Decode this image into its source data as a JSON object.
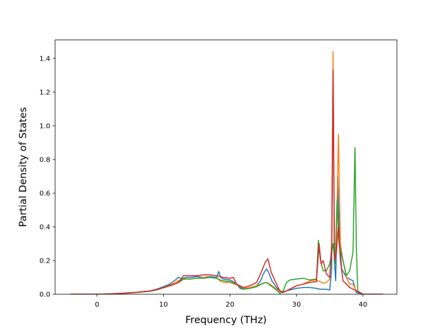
{
  "chart_data": {
    "type": "line",
    "title": "",
    "xlabel": "Frequency (THz)",
    "ylabel": "Partial Density of States",
    "xlim": [
      -6.3,
      45.1
    ],
    "ylim": [
      0,
      1.51
    ],
    "xticks": [
      0,
      10,
      20,
      30,
      40
    ],
    "yticks": [
      0.0,
      0.2,
      0.4,
      0.6,
      0.8,
      1.0,
      1.2,
      1.4
    ],
    "grid": false,
    "legend": "none",
    "series": [
      {
        "color": "#1f77b4",
        "points": [
          [
            -4,
            0
          ],
          [
            0,
            0
          ],
          [
            2,
            0.002
          ],
          [
            4,
            0.006
          ],
          [
            6,
            0.012
          ],
          [
            8,
            0.02
          ],
          [
            9,
            0.03
          ],
          [
            10,
            0.045
          ],
          [
            11,
            0.062
          ],
          [
            11.8,
            0.085
          ],
          [
            12.2,
            0.1
          ],
          [
            12.8,
            0.092
          ],
          [
            13.4,
            0.1
          ],
          [
            14,
            0.1
          ],
          [
            15,
            0.105
          ],
          [
            16,
            0.1
          ],
          [
            17,
            0.105
          ],
          [
            18,
            0.1
          ],
          [
            18.3,
            0.135
          ],
          [
            18.6,
            0.1
          ],
          [
            19,
            0.09
          ],
          [
            20,
            0.085
          ],
          [
            20.5,
            0.075
          ],
          [
            21,
            0.06
          ],
          [
            21.5,
            0.035
          ],
          [
            22,
            0.03
          ],
          [
            23,
            0.035
          ],
          [
            24,
            0.05
          ],
          [
            24.6,
            0.08
          ],
          [
            25,
            0.12
          ],
          [
            25.5,
            0.15
          ],
          [
            25.8,
            0.13
          ],
          [
            26.3,
            0.08
          ],
          [
            27,
            0.04
          ],
          [
            27.5,
            0.02
          ],
          [
            28,
            0.015
          ],
          [
            29,
            0.025
          ],
          [
            30,
            0.035
          ],
          [
            31,
            0.04
          ],
          [
            32,
            0.04
          ],
          [
            33,
            0.035
          ],
          [
            33.5,
            0.03
          ],
          [
            34,
            0.03
          ],
          [
            34.5,
            0.03
          ],
          [
            35,
            0.025
          ],
          [
            35.3,
            0.15
          ],
          [
            35.5,
            1.33
          ],
          [
            35.7,
            0.2
          ],
          [
            35.9,
            0.08
          ],
          [
            36.2,
            0.7
          ],
          [
            36.5,
            0.3
          ],
          [
            36.8,
            0.15
          ],
          [
            37.5,
            0.1
          ],
          [
            38.5,
            0.08
          ],
          [
            39,
            0.01
          ],
          [
            40,
            0
          ],
          [
            43,
            0
          ]
        ]
      },
      {
        "color": "#ff7f0e",
        "points": [
          [
            -4,
            0
          ],
          [
            0,
            0
          ],
          [
            2,
            0.002
          ],
          [
            4,
            0.005
          ],
          [
            6,
            0.011
          ],
          [
            8,
            0.019
          ],
          [
            9,
            0.027
          ],
          [
            10,
            0.04
          ],
          [
            11,
            0.055
          ],
          [
            12,
            0.075
          ],
          [
            12.5,
            0.085
          ],
          [
            13,
            0.09
          ],
          [
            14,
            0.09
          ],
          [
            15,
            0.095
          ],
          [
            16,
            0.1
          ],
          [
            17,
            0.1
          ],
          [
            18,
            0.095
          ],
          [
            18.5,
            0.08
          ],
          [
            19,
            0.07
          ],
          [
            20,
            0.07
          ],
          [
            21,
            0.055
          ],
          [
            22,
            0.035
          ],
          [
            23,
            0.04
          ],
          [
            24,
            0.05
          ],
          [
            25,
            0.065
          ],
          [
            25.5,
            0.07
          ],
          [
            26,
            0.06
          ],
          [
            27,
            0.03
          ],
          [
            27.5,
            0.015
          ],
          [
            28,
            0.01
          ],
          [
            29,
            0.03
          ],
          [
            30,
            0.05
          ],
          [
            31,
            0.06
          ],
          [
            32,
            0.08
          ],
          [
            33,
            0.085
          ],
          [
            33.5,
            0.075
          ],
          [
            34,
            0.065
          ],
          [
            34.5,
            0.07
          ],
          [
            35,
            0.09
          ],
          [
            35.3,
            0.3
          ],
          [
            35.5,
            1.44
          ],
          [
            35.7,
            0.3
          ],
          [
            36,
            0.3
          ],
          [
            36.3,
            0.95
          ],
          [
            36.6,
            0.3
          ],
          [
            37,
            0.2
          ],
          [
            37.5,
            0.1
          ],
          [
            38,
            0.06
          ],
          [
            38.5,
            0.06
          ],
          [
            39,
            0.02
          ],
          [
            40,
            0
          ],
          [
            43,
            0
          ]
        ]
      },
      {
        "color": "#2ca02c",
        "points": [
          [
            -4,
            0
          ],
          [
            0,
            0
          ],
          [
            2,
            0.002
          ],
          [
            4,
            0.005
          ],
          [
            6,
            0.01
          ],
          [
            8,
            0.018
          ],
          [
            9,
            0.026
          ],
          [
            10,
            0.038
          ],
          [
            11,
            0.05
          ],
          [
            12,
            0.065
          ],
          [
            12.5,
            0.075
          ],
          [
            13,
            0.09
          ],
          [
            14,
            0.09
          ],
          [
            15,
            0.095
          ],
          [
            16,
            0.095
          ],
          [
            17,
            0.1
          ],
          [
            18,
            0.095
          ],
          [
            18.5,
            0.085
          ],
          [
            19,
            0.08
          ],
          [
            20,
            0.075
          ],
          [
            21,
            0.06
          ],
          [
            22,
            0.03
          ],
          [
            23,
            0.035
          ],
          [
            24,
            0.045
          ],
          [
            25,
            0.065
          ],
          [
            25.5,
            0.07
          ],
          [
            26,
            0.055
          ],
          [
            27,
            0.025
          ],
          [
            27.5,
            0.005
          ],
          [
            28,
            0.02
          ],
          [
            28.5,
            0.07
          ],
          [
            29,
            0.085
          ],
          [
            30,
            0.09
          ],
          [
            31,
            0.095
          ],
          [
            32,
            0.085
          ],
          [
            33,
            0.09
          ],
          [
            33.3,
            0.32
          ],
          [
            33.6,
            0.2
          ],
          [
            34,
            0.14
          ],
          [
            34.5,
            0.14
          ],
          [
            35,
            0.18
          ],
          [
            35.5,
            0.3
          ],
          [
            35.8,
            0.18
          ],
          [
            36.1,
            0.56
          ],
          [
            36.4,
            0.3
          ],
          [
            37,
            0.2
          ],
          [
            37.5,
            0.11
          ],
          [
            38,
            0.14
          ],
          [
            38.5,
            0.25
          ],
          [
            38.8,
            0.87
          ],
          [
            39,
            0.3
          ],
          [
            39.2,
            0.02
          ],
          [
            40,
            0
          ],
          [
            43,
            0
          ]
        ]
      },
      {
        "color": "#d62728",
        "points": [
          [
            -4,
            0
          ],
          [
            0,
            0
          ],
          [
            2,
            0.002
          ],
          [
            4,
            0.006
          ],
          [
            6,
            0.012
          ],
          [
            8,
            0.02
          ],
          [
            9,
            0.028
          ],
          [
            10,
            0.04
          ],
          [
            11,
            0.052
          ],
          [
            12,
            0.065
          ],
          [
            12.5,
            0.08
          ],
          [
            13,
            0.11
          ],
          [
            14,
            0.11
          ],
          [
            15,
            0.11
          ],
          [
            16,
            0.115
          ],
          [
            17,
            0.115
          ],
          [
            18,
            0.11
          ],
          [
            18.5,
            0.105
          ],
          [
            19,
            0.1
          ],
          [
            20,
            0.095
          ],
          [
            20.5,
            0.1
          ],
          [
            21,
            0.06
          ],
          [
            22,
            0.04
          ],
          [
            23,
            0.05
          ],
          [
            24,
            0.07
          ],
          [
            24.8,
            0.14
          ],
          [
            25.3,
            0.19
          ],
          [
            25.7,
            0.21
          ],
          [
            26.2,
            0.13
          ],
          [
            27,
            0.06
          ],
          [
            27.5,
            0.02
          ],
          [
            28,
            0.01
          ],
          [
            29,
            0.03
          ],
          [
            30,
            0.05
          ],
          [
            31,
            0.06
          ],
          [
            32,
            0.07
          ],
          [
            33,
            0.075
          ],
          [
            33.4,
            0.3
          ],
          [
            33.7,
            0.18
          ],
          [
            34,
            0.2
          ],
          [
            34.5,
            0.12
          ],
          [
            35,
            0.1
          ],
          [
            35.3,
            0.3
          ],
          [
            35.5,
            1.33
          ],
          [
            35.7,
            0.2
          ],
          [
            36,
            0.25
          ],
          [
            36.3,
            0.4
          ],
          [
            36.6,
            0.2
          ],
          [
            37,
            0.08
          ],
          [
            38,
            0.04
          ],
          [
            39,
            0.02
          ],
          [
            40,
            0
          ],
          [
            43,
            0
          ]
        ]
      }
    ]
  }
}
